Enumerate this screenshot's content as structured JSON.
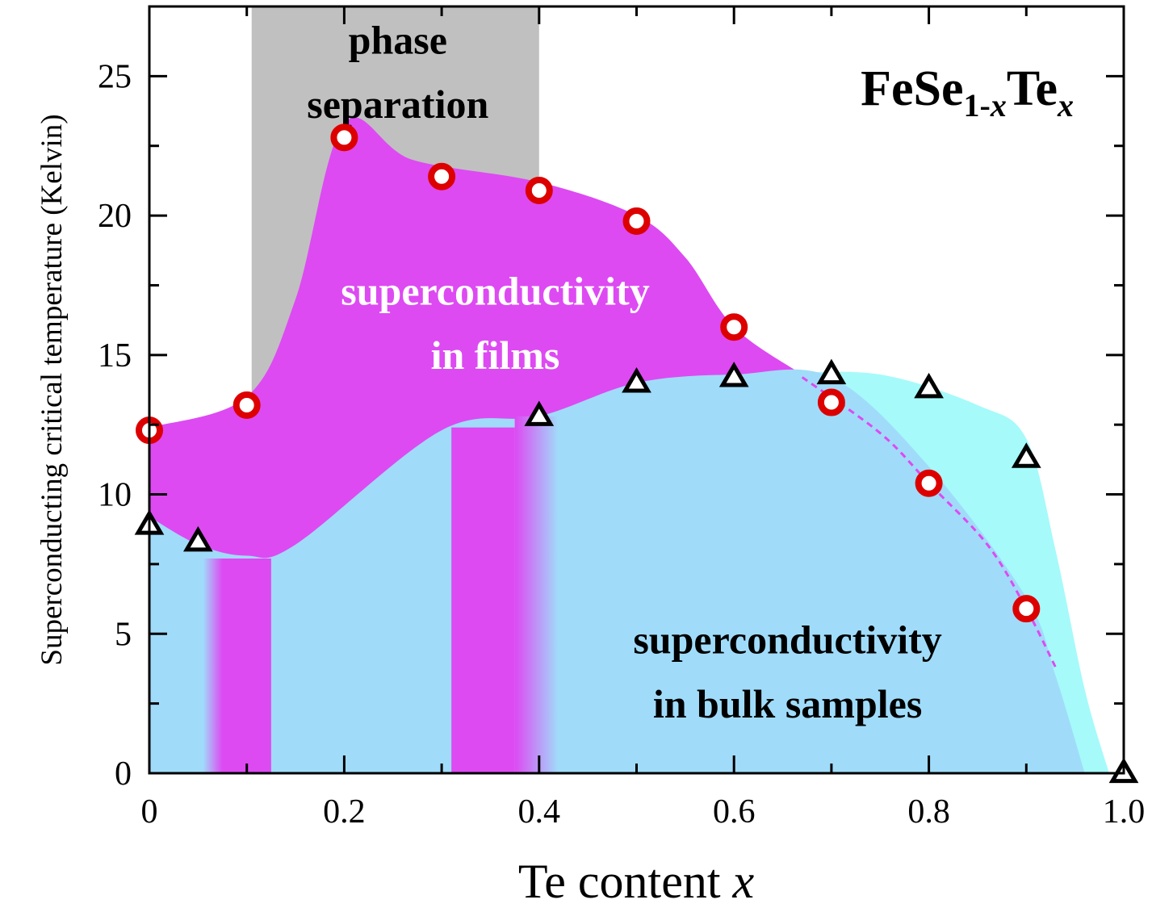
{
  "chart_data": {
    "type": "scatter",
    "title": "",
    "formula": {
      "base1": "FeSe",
      "sub1": "1-",
      "sub1_var": "x",
      "base2": "Te",
      "sub2_var": "x"
    },
    "xlabel": {
      "text": "Te content ",
      "var": "x"
    },
    "ylabel": "Superconducting critical temperature (Kelvin)",
    "xlim": [
      0,
      1.0
    ],
    "ylim": [
      0,
      27.5
    ],
    "xticks": [
      0,
      0.2,
      0.4,
      0.6,
      0.8,
      1.0
    ],
    "xtick_labels": [
      "0",
      "0.2",
      "0.4",
      "0.6",
      "0.8",
      "1.0"
    ],
    "yticks": [
      0,
      5,
      10,
      15,
      20,
      25
    ],
    "ytick_labels": [
      "0",
      "5",
      "10",
      "15",
      "20",
      "25"
    ],
    "grid": false,
    "legend": "none",
    "annotations": {
      "phase_separation": [
        "phase",
        "separation"
      ],
      "films": [
        "superconductivity",
        "in films"
      ],
      "bulk": [
        "superconductivity",
        "in bulk samples"
      ]
    },
    "phase_separation_range": [
      0.105,
      0.4
    ],
    "series": [
      {
        "marker": "circle",
        "color": "#dd0000",
        "x": [
          0,
          0.1,
          0.2,
          0.3,
          0.4,
          0.5,
          0.6,
          0.7,
          0.8,
          0.9
        ],
        "y": [
          12.3,
          13.2,
          22.8,
          21.4,
          20.9,
          19.8,
          16.0,
          13.3,
          10.4,
          5.9
        ]
      },
      {
        "marker": "triangle",
        "color": "#000000",
        "x": [
          0,
          0.05,
          0.4,
          0.5,
          0.6,
          0.7,
          0.8,
          0.9,
          1.0
        ],
        "y": [
          8.9,
          8.3,
          12.8,
          14.0,
          14.2,
          14.3,
          13.8,
          11.3,
          0
        ]
      }
    ],
    "colors": {
      "film_region": "#dd4af2",
      "bulk_region": "#a0dcfa",
      "bulk_tail": "#a6fafa",
      "phase_band": "#c0c0c0",
      "film_text": "#ffffff",
      "dashed_curve": "#dd4af2"
    }
  }
}
